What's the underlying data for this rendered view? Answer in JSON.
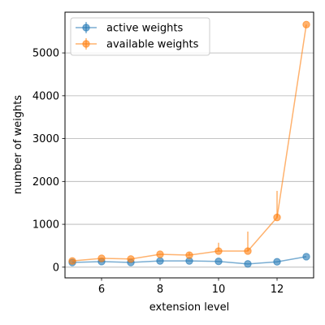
{
  "chart_data": {
    "type": "line",
    "title": "",
    "xlabel": "extension level",
    "ylabel": "number of weights",
    "xlim": [
      4.75,
      13.25
    ],
    "ylim": [
      -250,
      5950
    ],
    "xticks": [
      6,
      8,
      10,
      12
    ],
    "yticks": [
      0,
      1000,
      2000,
      3000,
      4000,
      5000
    ],
    "grid": "horizontal",
    "legend": "top-left",
    "series": [
      {
        "name": "active weights",
        "color": "#1f77b4",
        "x": [
          5,
          6,
          7,
          8,
          9,
          10,
          11,
          12,
          13
        ],
        "y": [
          110,
          130,
          110,
          145,
          145,
          135,
          75,
          125,
          245
        ],
        "yerr_low": [
          110,
          130,
          110,
          145,
          145,
          135,
          75,
          125,
          245
        ],
        "yerr_high": [
          110,
          130,
          110,
          145,
          145,
          135,
          75,
          125,
          245
        ]
      },
      {
        "name": "available weights",
        "color": "#ff7f0e",
        "x": [
          5,
          6,
          7,
          8,
          9,
          10,
          11,
          12,
          13
        ],
        "y": [
          145,
          205,
          190,
          300,
          280,
          375,
          375,
          1160,
          5660
        ],
        "yerr_low": [
          145,
          205,
          190,
          300,
          280,
          375,
          375,
          1160,
          5660
        ],
        "yerr_high": [
          145,
          205,
          190,
          300,
          340,
          570,
          830,
          1780,
          5660
        ]
      }
    ]
  }
}
